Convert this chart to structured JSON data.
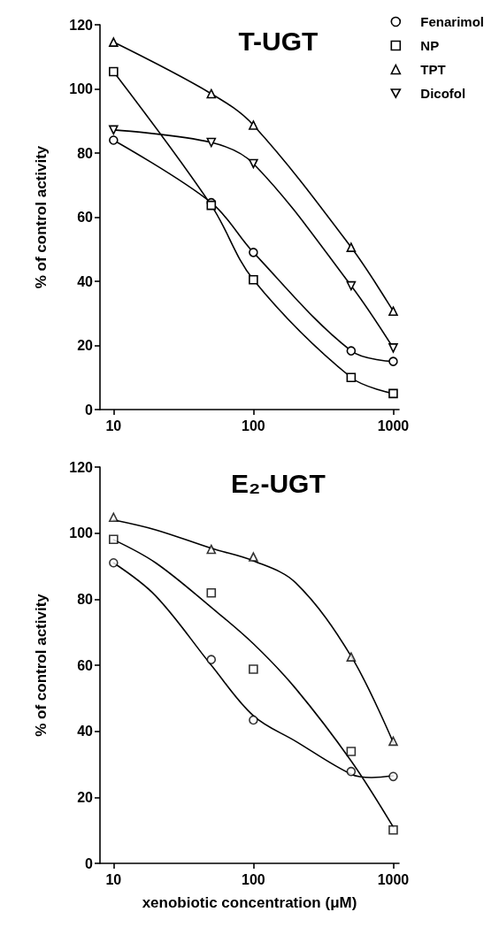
{
  "chart_data": [
    {
      "type": "line",
      "title": "T-UGT",
      "ylabel": "% of control activity",
      "x": [
        10,
        50,
        100,
        500,
        1000
      ],
      "xlim": [
        8,
        1100
      ],
      "xticks": [
        10,
        100,
        1000
      ],
      "ylim": [
        0,
        120
      ],
      "yticks": [
        0,
        20,
        40,
        60,
        80,
        100,
        120
      ],
      "log": "x",
      "legend": "top right",
      "line_style": "solid",
      "series": [
        {
          "name": "Fenarimol",
          "color": "#000000",
          "marker": "circle",
          "values": [
            84,
            64.5,
            49,
            18.3,
            15
          ]
        },
        {
          "name": "NP",
          "color": "#000000",
          "marker": "square",
          "values": [
            105.4,
            63.7,
            40.5,
            10,
            5
          ]
        },
        {
          "name": "TPT",
          "color": "#000000",
          "marker": "triangle",
          "values": [
            114.6,
            98.5,
            88.7,
            50.6,
            30.7
          ]
        },
        {
          "name": "Dicofol",
          "color": "#000000",
          "marker": "triangle-down",
          "values": [
            87.2,
            83.3,
            76.7,
            38.6,
            19.2
          ]
        }
      ]
    },
    {
      "type": "scatter",
      "title": "E₂-UGT",
      "xlabel": "xenobiotic concentration (μM)",
      "ylabel": "% of control activity",
      "x": [
        10,
        50,
        100,
        500,
        1000
      ],
      "xlim": [
        8,
        1100
      ],
      "xticks": [
        10,
        100,
        1000
      ],
      "ylim": [
        0,
        120
      ],
      "yticks": [
        0,
        20,
        40,
        60,
        80,
        100,
        120
      ],
      "log": "x",
      "series": [
        {
          "color": "#000000",
          "marker": "circle",
          "values": [
            91,
            61.7,
            43.4,
            27.8,
            26.3
          ]
        },
        {
          "color": "#000000",
          "marker": "square",
          "values": [
            98.1,
            81.9,
            58.8,
            33.9,
            10.1
          ]
        },
        {
          "color": "#000000",
          "marker": "triangle",
          "values": [
            104.8,
            95.1,
            92.8,
            62.5,
            37
          ]
        },
        {
          "type": "line",
          "color": "#000000",
          "marker": "none",
          "x": [
            10,
            20,
            50,
            100,
            200,
            500,
            700,
            1000
          ],
          "values": [
            91,
            81,
            60,
            44.7,
            37,
            27,
            26,
            26.5
          ]
        },
        {
          "type": "line",
          "color": "#000000",
          "marker": "none",
          "x": [
            10,
            20,
            50,
            100,
            200,
            500,
            1000
          ],
          "values": [
            98,
            91,
            77.5,
            66.5,
            53,
            31,
            11
          ]
        },
        {
          "type": "line",
          "color": "#000000",
          "marker": "none",
          "x": [
            10,
            20,
            50,
            100,
            200,
            500,
            1000
          ],
          "values": [
            104,
            101,
            95.4,
            91.6,
            85,
            62.7,
            36.6
          ]
        }
      ]
    }
  ]
}
